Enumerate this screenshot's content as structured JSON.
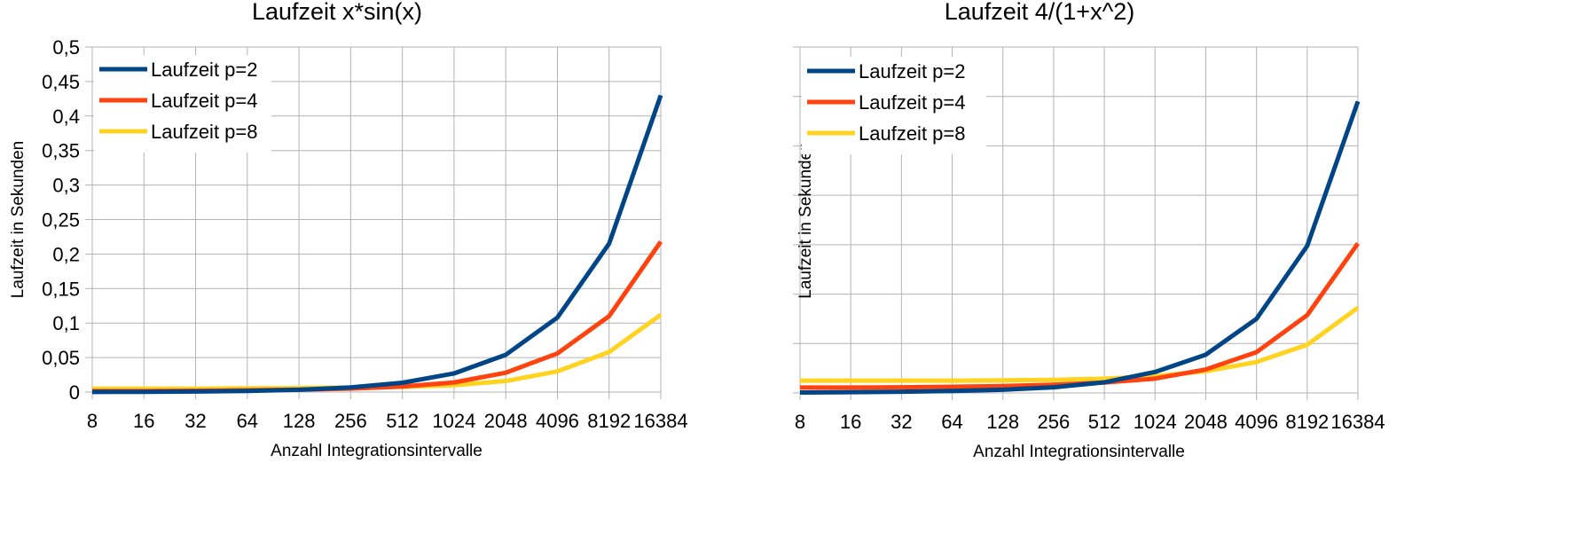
{
  "chart_data": [
    {
      "type": "line",
      "title": "Laufzeit x*sin(x)",
      "xlabel": "Anzahl Integrationsintervalle",
      "ylabel": "Laufzeit in Sekunden",
      "categories": [
        "8",
        "16",
        "32",
        "64",
        "128",
        "256",
        "512",
        "1024",
        "2048",
        "4096",
        "8192",
        "16384"
      ],
      "ylim": [
        0,
        0.5
      ],
      "yticks": [
        "0",
        "0,05",
        "0,1",
        "0,15",
        "0,2",
        "0,25",
        "0,3",
        "0,35",
        "0,4",
        "0,45",
        "0,5"
      ],
      "grid": true,
      "legend_position": "top-left",
      "series": [
        {
          "name": "Laufzeit p=2",
          "color": "#004586",
          "values": [
            0.0002,
            0.0004,
            0.0008,
            0.0016,
            0.0033,
            0.0067,
            0.0135,
            0.027,
            0.054,
            0.108,
            0.215,
            0.43
          ]
        },
        {
          "name": "Laufzeit p=4",
          "color": "#ff420e",
          "values": [
            0.0015,
            0.0015,
            0.002,
            0.0025,
            0.0035,
            0.005,
            0.008,
            0.014,
            0.028,
            0.056,
            0.11,
            0.218
          ]
        },
        {
          "name": "Laufzeit p=8",
          "color": "#ffd320",
          "values": [
            0.005,
            0.005,
            0.005,
            0.0055,
            0.006,
            0.0065,
            0.0075,
            0.01,
            0.016,
            0.03,
            0.058,
            0.112
          ]
        }
      ]
    },
    {
      "type": "line",
      "title": "Laufzeit 4/(1+x^2)",
      "xlabel": "Anzahl Integrationsintervalle",
      "ylabel": "Laufzeit in Sekunden",
      "categories": [
        "8",
        "16",
        "32",
        "64",
        "128",
        "256",
        "512",
        "1024",
        "2048",
        "4096",
        "8192",
        "16384"
      ],
      "ylim": [
        0,
        0.14
      ],
      "yticks": [
        "0",
        "0,02",
        "0,04",
        "0,06",
        "0,08",
        "0,1",
        "0,12",
        "0,14"
      ],
      "grid": true,
      "legend_position": "top-left",
      "series": [
        {
          "name": "Laufzeit p=2",
          "color": "#004586",
          "values": [
            0.0002,
            0.0003,
            0.0005,
            0.0008,
            0.0013,
            0.0023,
            0.0043,
            0.0085,
            0.0155,
            0.03,
            0.0595,
            0.118
          ]
        },
        {
          "name": "Laufzeit p=4",
          "color": "#ff420e",
          "values": [
            0.0022,
            0.0022,
            0.0023,
            0.0025,
            0.0028,
            0.0033,
            0.0042,
            0.0058,
            0.0095,
            0.0165,
            0.0315,
            0.0605
          ]
        },
        {
          "name": "Laufzeit p=8",
          "color": "#ffd320",
          "values": [
            0.005,
            0.005,
            0.005,
            0.005,
            0.0051,
            0.0053,
            0.0058,
            0.0068,
            0.0088,
            0.0125,
            0.0195,
            0.0345
          ]
        }
      ]
    }
  ]
}
